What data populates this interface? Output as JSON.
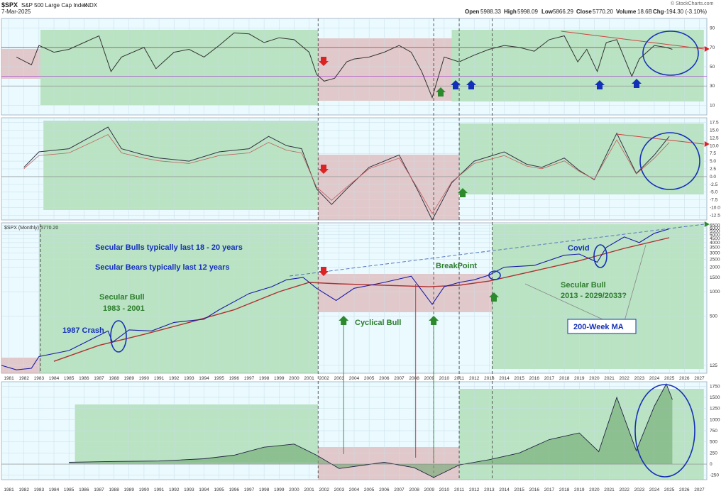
{
  "header": {
    "symbol": "$SPX",
    "name": "S&P 500 Large Cap Index",
    "exchange": "INDX",
    "date": "7-Mar-2025",
    "open_label": "Open",
    "open": "5988.33",
    "high_label": "High",
    "high": "5998.09",
    "low_label": "Low",
    "low": "5866.29",
    "close_label": "Close",
    "close": "5770.20",
    "volume_label": "Volume",
    "volume": "18.6B",
    "chg_label": "Chg",
    "chg": "-194.30 (-3.10%)",
    "brand": "© StockCharts.com"
  },
  "price_panel_label": "$SPX (Monthly) 5770.20",
  "annotations": {
    "bulls_text": "Secular Bulls typically last 18 - 20 years",
    "bears_text": "Secular Bears typically last 12 years",
    "secular_bull_1_title": "Secular Bull",
    "secular_bull_1_years": "1983 - 2001",
    "crash_1987": "1987 Crash",
    "cyclical_bull": "Cyclical Bull",
    "breakpoint": "BreakPoint",
    "covid": "Covid",
    "secular_bull_2_title": "Secular Bull",
    "secular_bull_2_years": "2013 - 2029/2033?",
    "ma_200_week": "200-Week MA"
  },
  "colors": {
    "bull_zone": "#8fcf8f",
    "bear_zone": "#d9a0a0",
    "annotation_blue": "#1530b8",
    "annotation_green": "#2e7d2e",
    "price_line": "#1a1aa8",
    "ma_line": "#b03030",
    "background": "#eafaff"
  },
  "chart_data": {
    "type": "line",
    "x_axis_years": [
      "1981",
      "1982",
      "1983",
      "1984",
      "1985",
      "1986",
      "1987",
      "1988",
      "1989",
      "1990",
      "1991",
      "1992",
      "1993",
      "1994",
      "1995",
      "1996",
      "1997",
      "1998",
      "1999",
      "2000",
      "2001",
      "2002",
      "2003",
      "2004",
      "2005",
      "2006",
      "2007",
      "2008",
      "2009",
      "2010",
      "2011",
      "2012",
      "2013",
      "2014",
      "2015",
      "2016",
      "2017",
      "2018",
      "2019",
      "2020",
      "2021",
      "2022",
      "2023",
      "2024",
      "2025",
      "2026",
      "2027"
    ],
    "rsi_panel": {
      "yticks": [
        "90",
        "70",
        "50",
        "30",
        "10"
      ],
      "ylim": [
        0,
        100
      ],
      "series": [
        {
          "x": [
            1981.5,
            1982.5,
            1983,
            1984,
            1985,
            1986,
            1987,
            1987.8,
            1988.5,
            1990,
            1990.8,
            1992,
            1993,
            1994,
            1995,
            1996,
            1997,
            1998,
            1999,
            2000,
            2001,
            2001.5,
            2002,
            2002.7,
            2003.5,
            2004,
            2005,
            2006,
            2007,
            2007.8,
            2008.5,
            2009.2,
            2010,
            2011,
            2012,
            2013,
            2014,
            2015,
            2016,
            2017,
            2018,
            2018.9,
            2019.5,
            2020.2,
            2020.8,
            2021.5,
            2022.5,
            2023,
            2024,
            2024.8,
            2025.2
          ],
          "y": [
            60,
            52,
            72,
            65,
            68,
            75,
            82,
            45,
            60,
            70,
            48,
            65,
            68,
            60,
            72,
            85,
            84,
            75,
            80,
            78,
            65,
            42,
            35,
            38,
            55,
            58,
            60,
            65,
            72,
            65,
            45,
            18,
            60,
            55,
            62,
            68,
            72,
            70,
            66,
            78,
            82,
            55,
            68,
            45,
            75,
            78,
            40,
            58,
            72,
            70,
            68
          ]
        }
      ]
    },
    "macd_panel": {
      "yticks": [
        "17.5",
        "15.0",
        "12.5",
        "10.0",
        "7.5",
        "5.0",
        "2.5",
        "0.0",
        "-2.5",
        "-5.0",
        "-7.5",
        "-10.0",
        "-12.5"
      ],
      "ylim": [
        -14,
        19
      ],
      "series": [
        {
          "x": [
            1982,
            1983,
            1985,
            1986.5,
            1987.6,
            1988.5,
            1990,
            1991,
            1993,
            1995,
            1997,
            1998.3,
            1999.5,
            2000.5,
            2001.5,
            2002.5,
            2003.5,
            2005,
            2007,
            2008.3,
            2009.2,
            2010.5,
            2012,
            2014,
            2015.5,
            2016.5,
            2018,
            2019,
            2020,
            2021.5,
            2022.8,
            2024,
            2025
          ],
          "y": [
            3,
            8,
            9,
            13,
            16,
            9,
            7,
            6,
            5,
            8,
            9,
            13,
            10,
            9,
            -4,
            -9,
            -4,
            3,
            7,
            -5,
            -14,
            -2,
            5,
            8,
            4,
            3,
            6,
            2,
            -1,
            14,
            1,
            7,
            13
          ]
        }
      ]
    },
    "price_panel": {
      "yticks": [
        "6500",
        "6000",
        "5500",
        "5000",
        "4500",
        "4000",
        "3500",
        "3000",
        "2500",
        "2000",
        "1500",
        "1000",
        "500",
        "125"
      ],
      "series": [
        {
          "name": "$SPX (Monthly)",
          "x": [
            1980.5,
            1981.5,
            1982.5,
            1983,
            1985,
            1987.6,
            1987.9,
            1989,
            1990.5,
            1992,
            1994,
            1995,
            1997,
            1998.5,
            1999.5,
            2000.6,
            2001.5,
            2002.8,
            2004,
            2006,
            2007.8,
            2009.2,
            2010,
            2011,
            2012,
            2013,
            2014,
            2015,
            2016,
            2018,
            2019,
            2020.2,
            2020.8,
            2022,
            2023,
            2024,
            2025
          ],
          "y": [
            125,
            110,
            115,
            160,
            190,
            330,
            240,
            340,
            330,
            420,
            460,
            600,
            950,
            1150,
            1400,
            1500,
            1100,
            780,
            1100,
            1300,
            1550,
            700,
            1150,
            1300,
            1400,
            1600,
            2000,
            2050,
            2100,
            2800,
            2900,
            2300,
            3500,
            4700,
            4000,
            5200,
            5900
          ]
        },
        {
          "name": "200-Week MA",
          "x": [
            1984,
            1987,
            1990,
            1993,
            1996,
            1999,
            2001,
            2003,
            2006,
            2009,
            2011,
            2013,
            2016,
            2019,
            2022,
            2025
          ],
          "y": [
            140,
            220,
            300,
            420,
            600,
            1000,
            1300,
            1250,
            1200,
            1150,
            1200,
            1350,
            1800,
            2400,
            3400,
            4600
          ]
        }
      ]
    },
    "bottom_panel": {
      "yticks": [
        "1750",
        "1500",
        "1250",
        "1000",
        "750",
        "500",
        "250",
        "0",
        "-250"
      ],
      "ylim": [
        -350,
        1850
      ],
      "series": [
        {
          "x": [
            1985,
            1988,
            1991,
            1994,
            1996,
            1998,
            2000,
            2001.5,
            2003,
            2006,
            2008,
            2009.3,
            2011,
            2013,
            2015,
            2017,
            2019,
            2020.3,
            2021.5,
            2022.8,
            2024,
            2024.8,
            2025.2
          ],
          "y": [
            40,
            60,
            70,
            120,
            200,
            380,
            450,
            200,
            -100,
            40,
            -80,
            -300,
            -20,
            100,
            250,
            550,
            700,
            280,
            1500,
            300,
            1300,
            1800,
            1450
          ]
        }
      ]
    }
  }
}
